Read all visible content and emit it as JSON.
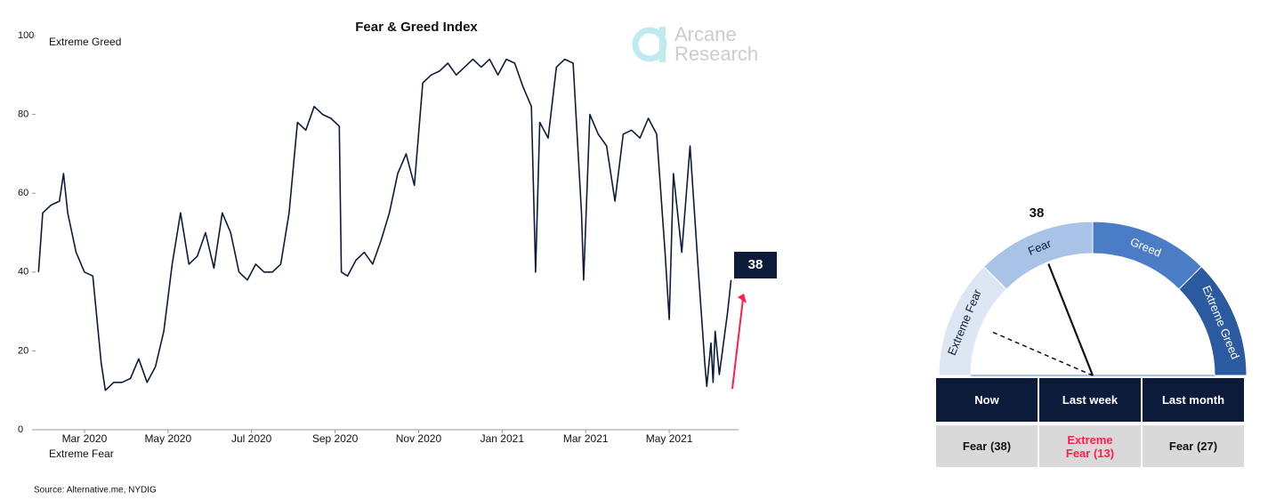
{
  "chart_data": [
    {
      "type": "line",
      "title": "Fear & Greed Index",
      "annotations": {
        "top": "Extreme Greed",
        "bottom": "Extreme Fear"
      },
      "source": "Source: Alternative.me, NYDIG",
      "color": "#0d1b3a",
      "x": [
        1.9,
        2.0,
        2.2,
        2.4,
        2.5,
        2.6,
        2.8,
        3.0,
        3.2,
        3.4,
        3.5,
        3.7,
        3.9,
        4.1,
        4.3,
        4.5,
        4.7,
        4.9,
        5.1,
        5.3,
        5.5,
        5.7,
        5.9,
        6.1,
        6.3,
        6.5,
        6.7,
        6.9,
        7.1,
        7.3,
        7.5,
        7.7,
        7.9,
        8.1,
        8.3,
        8.5,
        8.7,
        8.9,
        9.1,
        9.15,
        9.3,
        9.5,
        9.7,
        9.9,
        10.1,
        10.3,
        10.5,
        10.7,
        10.9,
        11.1,
        11.3,
        11.5,
        11.7,
        11.9,
        12.1,
        12.3,
        12.5,
        12.7,
        12.9,
        13.1,
        13.3,
        13.5,
        13.7,
        13.8,
        13.9,
        14.1,
        14.3,
        14.5,
        14.7,
        14.9,
        14.95,
        15.1,
        15.3,
        15.5,
        15.7,
        15.9,
        16.1,
        16.3,
        16.5,
        16.7,
        16.9,
        17.0,
        17.1,
        17.3,
        17.5,
        17.7,
        17.8,
        17.85,
        17.9,
        18.0,
        18.05,
        18.1,
        18.2,
        18.3,
        18.4,
        18.48
      ],
      "values": [
        40,
        55,
        57,
        58,
        65,
        55,
        45,
        40,
        39,
        17,
        10,
        12,
        12,
        13,
        18,
        12,
        16,
        25,
        42,
        55,
        42,
        44,
        50,
        41,
        55,
        50,
        40,
        38,
        42,
        40,
        40,
        42,
        55,
        78,
        76,
        82,
        80,
        79,
        77,
        40,
        39,
        43,
        45,
        42,
        48,
        55,
        65,
        70,
        62,
        88,
        90,
        91,
        93,
        90,
        92,
        94,
        92,
        94,
        90,
        94,
        93,
        87,
        82,
        40,
        78,
        74,
        92,
        94,
        93,
        55,
        38,
        80,
        75,
        72,
        58,
        75,
        76,
        74,
        79,
        75,
        45,
        28,
        65,
        45,
        72,
        40,
        25,
        17,
        11,
        22,
        12,
        25,
        14,
        22,
        30,
        38
      ],
      "xlim": [
        1.83,
        18.66
      ],
      "xticks": [
        {
          "value": 3,
          "label": "Mar 2020"
        },
        {
          "value": 5,
          "label": "May 2020"
        },
        {
          "value": 7,
          "label": "Jul 2020"
        },
        {
          "value": 9,
          "label": "Sep 2020"
        },
        {
          "value": 11,
          "label": "Nov 2020"
        },
        {
          "value": 13,
          "label": "Jan 2021"
        },
        {
          "value": 15,
          "label": "Mar 2021"
        },
        {
          "value": 17,
          "label": "May 2021"
        }
      ],
      "ylim": [
        0,
        100
      ],
      "yticks": [
        0,
        20,
        40,
        60,
        80,
        100
      ]
    },
    {
      "type": "gauge",
      "value": 38,
      "previous": 13,
      "range": [
        0,
        100
      ],
      "bands": [
        {
          "name": "Extreme Fear",
          "from": 0,
          "to": 25,
          "color": "#dde7f4"
        },
        {
          "name": "Fear",
          "from": 25,
          "to": 50,
          "color": "#a9c3e6"
        },
        {
          "name": "Greed",
          "from": 50,
          "to": 75,
          "color": "#4b7dc6"
        },
        {
          "name": "Extreme Greed",
          "from": 75,
          "to": 100,
          "color": "#2c5aa0"
        }
      ]
    }
  ],
  "logo": {
    "line1": "Arcane",
    "line2": "Research"
  },
  "table": {
    "header": [
      "Now",
      "Last week",
      "Last month"
    ],
    "row": [
      "Fear (38)",
      "Extreme Fear (13)",
      "Fear (27)"
    ]
  }
}
